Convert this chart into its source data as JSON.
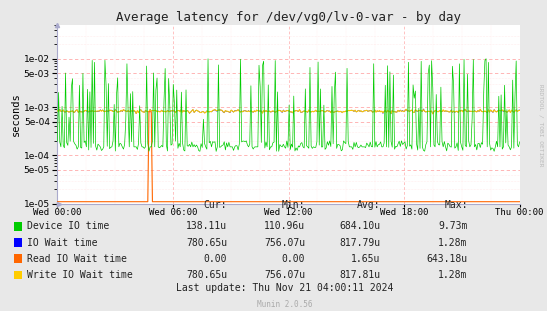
{
  "title": "Average latency for /dev/vg0/lv-0-var - by day",
  "ylabel": "seconds",
  "background_color": "#e8e8e8",
  "plot_bg_color": "#ffffff",
  "grid_color_major": "#ffaaaa",
  "grid_color_minor": "#ffdddd",
  "ylim_min": 1e-05,
  "ylim_max": 0.05,
  "x_tick_labels": [
    "Wed 00:00",
    "Wed 06:00",
    "Wed 12:00",
    "Wed 18:00",
    "Thu 00:00"
  ],
  "ytick_labels": [
    "1e-05",
    "5e-05",
    "1e-04",
    "5e-04",
    "1e-03",
    "5e-03",
    "1e-02"
  ],
  "ytick_values": [
    1e-05,
    5e-05,
    0.0001,
    0.0005,
    0.001,
    0.005,
    0.01
  ],
  "legend_entries": [
    {
      "label": "Device IO time",
      "color": "#00cc00"
    },
    {
      "label": "IO Wait time",
      "color": "#0000ff"
    },
    {
      "label": "Read IO Wait time",
      "color": "#ff6600"
    },
    {
      "label": "Write IO Wait time",
      "color": "#ffcc00"
    }
  ],
  "stats_headers": [
    "Cur:",
    "Min:",
    "Avg:",
    "Max:"
  ],
  "stats_rows": [
    [
      "138.11u",
      "110.96u",
      "684.10u",
      "9.73m"
    ],
    [
      "780.65u",
      "756.07u",
      "817.79u",
      "1.28m"
    ],
    [
      "0.00",
      "0.00",
      "1.65u",
      "643.18u"
    ],
    [
      "780.65u",
      "756.07u",
      "817.81u",
      "1.28m"
    ]
  ],
  "last_update": "Last update: Thu Nov 21 04:00:11 2024",
  "munin_version": "Munin 2.0.56",
  "rrdtool_label": "RRDTOOL / TOBI OETIKER"
}
